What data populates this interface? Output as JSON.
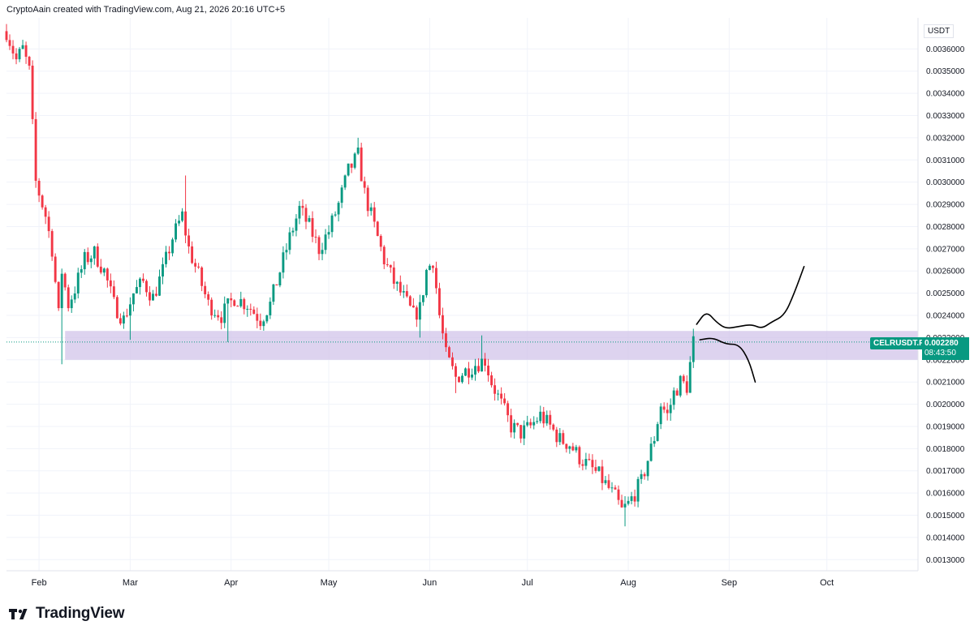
{
  "header": {
    "text": "CryptoAain created with TradingView.com, Aug 21, 2026 20:16 UTC+5"
  },
  "brand": {
    "name": "TradingView",
    "logo_icon": "tradingview-logo-icon"
  },
  "price_axis": {
    "currency": "USDT",
    "ticks": [
      "0.0013000",
      "0.0014000",
      "0.0015000",
      "0.0016000",
      "0.0017000",
      "0.0018000",
      "0.0019000",
      "0.0020000",
      "0.0021000",
      "0.0022000",
      "0.0023000",
      "0.0024000",
      "0.0025000",
      "0.0026000",
      "0.0027000",
      "0.0028000",
      "0.0029000",
      "0.0030000",
      "0.0031000",
      "0.0032000",
      "0.0033000",
      "0.0034000",
      "0.0035000",
      "0.0036000"
    ]
  },
  "symbol": {
    "name": "CELRUSDT.P",
    "last_price": "0.002280",
    "countdown": "08:43:50"
  },
  "colors": {
    "up": "#089981",
    "down": "#f23645",
    "zone": "#d1c4e9",
    "grid": "#f0f3fa",
    "drawing": "#000000"
  },
  "chart_data": {
    "type": "candlestick",
    "title": "",
    "xlabel": "",
    "ylabel": "",
    "ylim": [
      0.00125,
      0.00374
    ],
    "x_range": [
      "2026-01-22",
      "2026-10-29"
    ],
    "grid": true,
    "x_ticks": [
      {
        "label": "Feb",
        "date": "2026-02-01"
      },
      {
        "label": "Mar",
        "date": "2026-03-01"
      },
      {
        "label": "Apr",
        "date": "2026-04-01"
      },
      {
        "label": "May",
        "date": "2026-05-01"
      },
      {
        "label": "Jun",
        "date": "2026-06-01"
      },
      {
        "label": "Jul",
        "date": "2026-07-01"
      },
      {
        "label": "Aug",
        "date": "2026-08-01"
      },
      {
        "label": "Sep",
        "date": "2026-09-01"
      },
      {
        "label": "Oct",
        "date": "2026-10-01"
      }
    ],
    "support_zone": {
      "from_date": "2026-02-09",
      "low": 0.0022,
      "high": 0.00233
    },
    "last_price_line": 0.00228,
    "path": [
      [
        "2026-01-22",
        0.00368
      ],
      [
        "2026-01-25",
        0.00355
      ],
      [
        "2026-01-27",
        0.0036
      ],
      [
        "2026-01-29",
        0.0035
      ],
      [
        "2026-01-31",
        0.003
      ],
      [
        "2026-02-03",
        0.00285
      ],
      [
        "2026-02-05",
        0.0027
      ],
      [
        "2026-02-07",
        0.0024
      ],
      [
        "2026-02-08",
        0.0026
      ],
      [
        "2026-02-10",
        0.00245
      ],
      [
        "2026-02-12",
        0.00252
      ],
      [
        "2026-02-15",
        0.00265
      ],
      [
        "2026-02-18",
        0.00268
      ],
      [
        "2026-02-21",
        0.0026
      ],
      [
        "2026-02-24",
        0.00245
      ],
      [
        "2026-02-27",
        0.00238
      ],
      [
        "2026-03-02",
        0.0025
      ],
      [
        "2026-03-05",
        0.00255
      ],
      [
        "2026-03-08",
        0.00248
      ],
      [
        "2026-03-11",
        0.0026
      ],
      [
        "2026-03-14",
        0.00275
      ],
      [
        "2026-03-17",
        0.00285
      ],
      [
        "2026-03-19",
        0.0027
      ],
      [
        "2026-03-22",
        0.00258
      ],
      [
        "2026-03-25",
        0.00245
      ],
      [
        "2026-03-29",
        0.0024
      ],
      [
        "2026-04-02",
        0.00248
      ],
      [
        "2026-04-06",
        0.00245
      ],
      [
        "2026-04-10",
        0.00238
      ],
      [
        "2026-04-13",
        0.00245
      ],
      [
        "2026-04-16",
        0.0026
      ],
      [
        "2026-04-19",
        0.00275
      ],
      [
        "2026-04-22",
        0.00288
      ],
      [
        "2026-04-25",
        0.0028
      ],
      [
        "2026-04-28",
        0.0027
      ],
      [
        "2026-05-01",
        0.00278
      ],
      [
        "2026-05-04",
        0.0029
      ],
      [
        "2026-05-07",
        0.00305
      ],
      [
        "2026-05-10",
        0.00312
      ],
      [
        "2026-05-12",
        0.00295
      ],
      [
        "2026-05-15",
        0.0028
      ],
      [
        "2026-05-18",
        0.00265
      ],
      [
        "2026-05-21",
        0.00255
      ],
      [
        "2026-05-24",
        0.00248
      ],
      [
        "2026-05-27",
        0.0024
      ],
      [
        "2026-05-29",
        0.00243
      ],
      [
        "2026-05-31",
        0.0026
      ],
      [
        "2026-06-02",
        0.00265
      ],
      [
        "2026-06-04",
        0.0024
      ],
      [
        "2026-06-06",
        0.00222
      ],
      [
        "2026-06-09",
        0.00212
      ],
      [
        "2026-06-12",
        0.00215
      ],
      [
        "2026-06-15",
        0.00218
      ],
      [
        "2026-06-18",
        0.0022
      ],
      [
        "2026-06-20",
        0.0021
      ],
      [
        "2026-06-23",
        0.002
      ],
      [
        "2026-06-26",
        0.0019
      ],
      [
        "2026-06-29",
        0.00187
      ],
      [
        "2026-07-02",
        0.0019
      ],
      [
        "2026-07-05",
        0.00195
      ],
      [
        "2026-07-08",
        0.0019
      ],
      [
        "2026-07-11",
        0.00184
      ],
      [
        "2026-07-14",
        0.00182
      ],
      [
        "2026-07-17",
        0.00176
      ],
      [
        "2026-07-20",
        0.00172
      ],
      [
        "2026-07-23",
        0.00168
      ],
      [
        "2026-07-26",
        0.00162
      ],
      [
        "2026-07-28",
        0.00158
      ],
      [
        "2026-07-30",
        0.00152
      ],
      [
        "2026-08-01",
        0.00155
      ],
      [
        "2026-08-03",
        0.0016
      ],
      [
        "2026-08-05",
        0.00165
      ],
      [
        "2026-08-07",
        0.00175
      ],
      [
        "2026-08-09",
        0.00185
      ],
      [
        "2026-08-11",
        0.002
      ],
      [
        "2026-08-13",
        0.00195
      ],
      [
        "2026-08-15",
        0.00205
      ],
      [
        "2026-08-17",
        0.0021
      ],
      [
        "2026-08-19",
        0.00208
      ],
      [
        "2026-08-21",
        0.00228
      ]
    ],
    "candle_lows": [
      [
        "2026-02-08",
        0.00218
      ],
      [
        "2026-03-01",
        0.00229
      ],
      [
        "2026-03-31",
        0.00228
      ],
      [
        "2026-05-29",
        0.0023
      ],
      [
        "2026-06-09",
        0.00205
      ],
      [
        "2026-07-31",
        0.00145
      ]
    ],
    "candle_highs": [
      [
        "2026-03-18",
        0.00303
      ],
      [
        "2026-05-10",
        0.0032
      ],
      [
        "2026-06-17",
        0.00231
      ],
      [
        "2026-08-21",
        0.00234
      ]
    ],
    "projection_paths": [
      [
        [
          "2026-08-22",
          0.00236
        ],
        [
          "2026-08-25",
          0.00242
        ],
        [
          "2026-08-28",
          0.00237
        ],
        [
          "2026-08-31",
          0.00234
        ],
        [
          "2026-09-04",
          0.00235
        ],
        [
          "2026-09-08",
          0.00236
        ],
        [
          "2026-09-11",
          0.00234
        ],
        [
          "2026-09-14",
          0.00237
        ],
        [
          "2026-09-18",
          0.0024
        ],
        [
          "2026-09-21",
          0.0025
        ],
        [
          "2026-09-24",
          0.00262
        ]
      ],
      [
        [
          "2026-08-23",
          0.00229
        ],
        [
          "2026-08-27",
          0.0023
        ],
        [
          "2026-08-31",
          0.00227
        ],
        [
          "2026-09-04",
          0.00227
        ],
        [
          "2026-09-07",
          0.0022
        ],
        [
          "2026-09-09",
          0.0021
        ]
      ]
    ]
  }
}
